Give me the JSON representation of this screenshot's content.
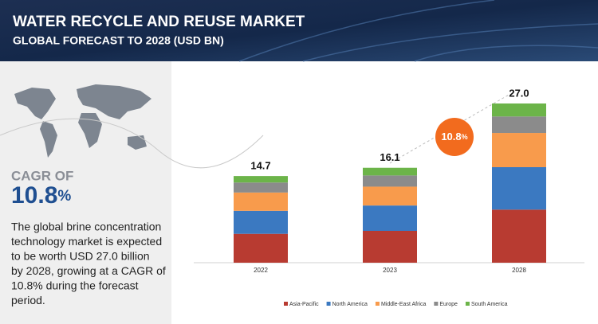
{
  "header": {
    "title": "WATER RECYCLE AND REUSE MARKET",
    "subtitle": "GLOBAL FORECAST TO 2028 (USD BN)"
  },
  "cagr": {
    "label": "CAGR OF",
    "value": 10.8,
    "unit": "%"
  },
  "description": [
    "The global brine concentration",
    "technology market is expected",
    "to be worth USD 27.0 billion",
    "by 2028, growing at a CAGR of",
    "10.8% during the forecast",
    "period."
  ],
  "chart_data": {
    "type": "stacked-bar",
    "categories": [
      "2022",
      "2023",
      "2028"
    ],
    "totals": [
      14.7,
      16.1,
      27.0
    ],
    "total_labels": [
      "14.7",
      "16.1",
      "27.0"
    ],
    "series": [
      {
        "name": "Asia-Pacific",
        "color": "#b83b31",
        "values": [
          4.9,
          5.4,
          9.0
        ]
      },
      {
        "name": "North America",
        "color": "#3b79c1",
        "values": [
          3.9,
          4.3,
          7.2
        ]
      },
      {
        "name": "Middle-East Africa",
        "color": "#f89b4c",
        "values": [
          3.1,
          3.2,
          5.8
        ]
      },
      {
        "name": "Europe",
        "color": "#8b8b8b",
        "values": [
          1.7,
          1.9,
          2.8
        ]
      },
      {
        "name": "South America",
        "color": "#6cb449",
        "values": [
          1.1,
          1.3,
          2.2
        ]
      }
    ]
  }
}
